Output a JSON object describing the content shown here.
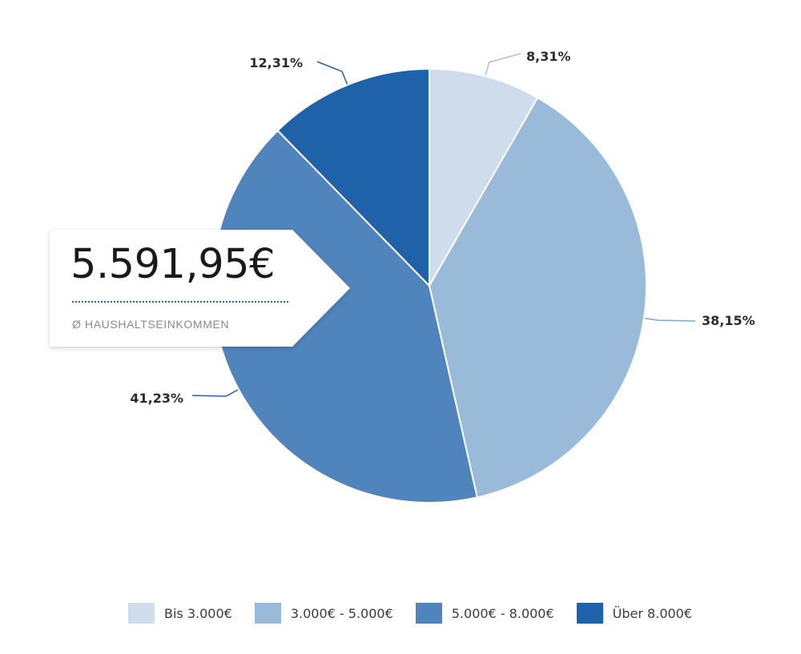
{
  "chart_data": {
    "type": "pie",
    "categories": [
      "Bis 3.000€",
      "3.000€ - 5.000€",
      "5.000€ - 8.000€",
      "Über 8.000€"
    ],
    "values": [
      8.31,
      38.15,
      41.23,
      12.31
    ],
    "value_labels": [
      "8,31%",
      "38,15%",
      "41,23%",
      "12,31%"
    ],
    "colors": [
      "#cfdcec",
      "#9abad9",
      "#4f84bd",
      "#1f62aa"
    ],
    "start_angle_deg": 0,
    "direction": "clockwise",
    "legend_position": "bottom"
  },
  "callout": {
    "value": "5.591,95€",
    "label": "Ø HAUSHALTSEINKOMMEN"
  },
  "colors": {
    "divider": "#2a63ad",
    "leader_lines": [
      "#a9bfdd",
      "#7ea7d1",
      "#2a63ad",
      "#1f62aa"
    ]
  }
}
